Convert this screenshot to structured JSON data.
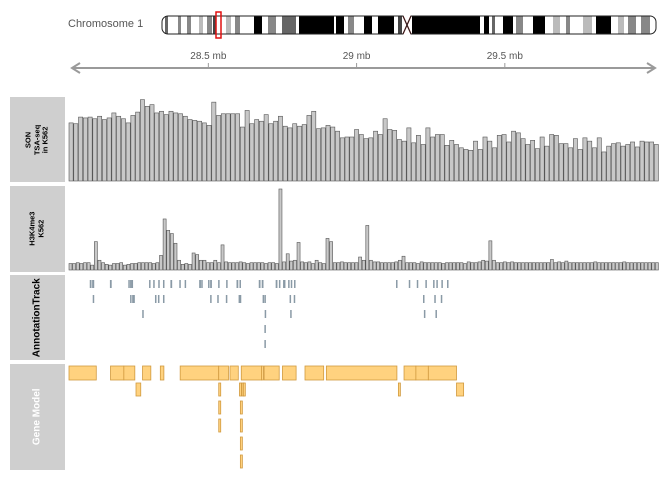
{
  "ideogram": {
    "chromosome": "Chromosome 1",
    "highlight": "red outline marks the displayed region",
    "centromere_color": "#cc0000"
  },
  "axis": {
    "ticks": [
      "28.5 mb",
      "29 mb",
      "29.5 mb"
    ],
    "tick_values_mb": [
      28.5,
      29.0,
      29.5
    ],
    "range_mb": [
      28.03,
      30.02
    ],
    "arrow": "double-headed"
  },
  "tracks": [
    {
      "name": "SON TSA-seq in K562",
      "lines": [
        "SON",
        "TSA-seq",
        "in K562"
      ],
      "label_color": "#000000"
    },
    {
      "name": "H3K4me3 K562",
      "lines": [
        "H3K4me3",
        "K562"
      ],
      "label_color": "#000000"
    },
    {
      "name": "AnnotationTrack",
      "lines": [
        "AnnotationTrack"
      ],
      "label_color": "#000000"
    },
    {
      "name": "Gene Model",
      "lines": [
        "Gene Model"
      ],
      "label_color": "#ffffff"
    }
  ],
  "colors": {
    "panel_bg": "#cfcfcf",
    "bar_fill": "#c8c8c8",
    "bar_stroke": "#555555",
    "annotation": "#8a9aa6",
    "gene_fill": "#ffd27f",
    "gene_stroke": "#d19a3f"
  },
  "chart_data": [
    {
      "type": "bar",
      "track": "SON TSA-seq in K562",
      "values": [
        0.7,
        0.69,
        0.77,
        0.76,
        0.77,
        0.75,
        0.78,
        0.74,
        0.76,
        0.82,
        0.78,
        0.75,
        0.7,
        0.79,
        0.83,
        0.98,
        0.9,
        0.92,
        0.82,
        0.84,
        0.8,
        0.84,
        0.82,
        0.81,
        0.78,
        0.74,
        0.73,
        0.72,
        0.7,
        0.67,
        0.95,
        0.79,
        0.81,
        0.81,
        0.81,
        0.81,
        0.65,
        0.85,
        0.69,
        0.74,
        0.72,
        0.8,
        0.69,
        0.72,
        0.78,
        0.66,
        0.64,
        0.69,
        0.66,
        0.68,
        0.79,
        0.84,
        0.63,
        0.64,
        0.67,
        0.65,
        0.6,
        0.52,
        0.53,
        0.53,
        0.62,
        0.56,
        0.51,
        0.52,
        0.6,
        0.56,
        0.75,
        0.62,
        0.61,
        0.5,
        0.48,
        0.64,
        0.46,
        0.55,
        0.44,
        0.64,
        0.53,
        0.56,
        0.56,
        0.43,
        0.49,
        0.44,
        0.4,
        0.38,
        0.37,
        0.48,
        0.38,
        0.53,
        0.48,
        0.4,
        0.55,
        0.56,
        0.47,
        0.6,
        0.58,
        0.51,
        0.44,
        0.49,
        0.39,
        0.53,
        0.42,
        0.56,
        0.55,
        0.45,
        0.45,
        0.4,
        0.51,
        0.38,
        0.52,
        0.48,
        0.4,
        0.52,
        0.35,
        0.42,
        0.45,
        0.46,
        0.42,
        0.44,
        0.47,
        0.41,
        0.48,
        0.47,
        0.47,
        0.44
      ],
      "ylim": [
        0,
        1
      ]
    },
    {
      "type": "bar",
      "track": "H3K4me3 K562",
      "values": [
        0.08,
        0.08,
        0.09,
        0.08,
        0.09,
        0.09,
        0.06,
        0.35,
        0.12,
        0.09,
        0.07,
        0.06,
        0.08,
        0.08,
        0.09,
        0.06,
        0.07,
        0.08,
        0.08,
        0.09,
        0.09,
        0.09,
        0.09,
        0.08,
        0.09,
        0.18,
        0.63,
        0.49,
        0.45,
        0.33,
        0.12,
        0.07,
        0.08,
        0.07,
        0.21,
        0.19,
        0.12,
        0.12,
        0.09,
        0.09,
        0.12,
        0.09,
        0.31,
        0.1,
        0.09,
        0.09,
        0.09,
        0.1,
        0.09,
        0.08,
        0.09,
        0.09,
        0.09,
        0.09,
        0.08,
        0.09,
        0.09,
        0.08,
        1.0,
        0.1,
        0.2,
        0.11,
        0.12,
        0.34,
        0.1,
        0.09,
        0.1,
        0.08,
        0.12,
        0.09,
        0.08,
        0.39,
        0.35,
        0.09,
        0.09,
        0.1,
        0.09,
        0.09,
        0.09,
        0.09,
        0.16,
        0.12,
        0.55,
        0.12,
        0.1,
        0.1,
        0.09,
        0.09,
        0.09,
        0.09,
        0.1,
        0.12,
        0.17,
        0.09,
        0.09,
        0.09,
        0.08,
        0.1,
        0.09,
        0.09,
        0.09,
        0.09,
        0.09,
        0.08,
        0.09,
        0.09,
        0.09,
        0.09,
        0.09,
        0.08,
        0.1,
        0.09,
        0.09,
        0.1,
        0.12,
        0.11,
        0.36,
        0.12,
        0.09,
        0.09,
        0.1,
        0.09,
        0.1,
        0.09,
        0.09,
        0.09,
        0.09,
        0.09,
        0.09,
        0.09,
        0.09,
        0.09,
        0.09,
        0.13,
        0.09,
        0.1,
        0.09,
        0.11,
        0.09,
        0.09,
        0.09,
        0.09,
        0.09,
        0.09,
        0.09,
        0.1,
        0.09,
        0.09,
        0.09,
        0.09,
        0.09,
        0.09,
        0.09,
        0.1,
        0.09,
        0.09,
        0.09,
        0.09,
        0.09,
        0.09,
        0.09,
        0.09,
        0.09
      ],
      "ylim": [
        0,
        1
      ]
    },
    {
      "type": "intervals",
      "track": "AnnotationTrack",
      "x_unit": "mb",
      "items": [
        {
          "start": 28.1,
          "end": 28.106,
          "row": 0
        },
        {
          "start": 28.108,
          "end": 28.11,
          "row": 0
        },
        {
          "start": 28.11,
          "end": 28.115,
          "row": 0
        },
        {
          "start": 28.168,
          "end": 28.174,
          "row": 0
        },
        {
          "start": 28.23,
          "end": 28.234,
          "row": 0
        },
        {
          "start": 28.236,
          "end": 28.24,
          "row": 0
        },
        {
          "start": 28.241,
          "end": 28.245,
          "row": 0
        },
        {
          "start": 28.3,
          "end": 28.305,
          "row": 0
        },
        {
          "start": 28.314,
          "end": 28.318,
          "row": 0
        },
        {
          "start": 28.331,
          "end": 28.335,
          "row": 0
        },
        {
          "start": 28.347,
          "end": 28.352,
          "row": 0
        },
        {
          "start": 28.372,
          "end": 28.378,
          "row": 0
        },
        {
          "start": 28.402,
          "end": 28.406,
          "row": 0
        },
        {
          "start": 28.42,
          "end": 28.424,
          "row": 0
        },
        {
          "start": 28.469,
          "end": 28.475,
          "row": 0
        },
        {
          "start": 28.476,
          "end": 28.48,
          "row": 0
        },
        {
          "start": 28.499,
          "end": 28.504,
          "row": 0
        },
        {
          "start": 28.506,
          "end": 28.512,
          "row": 0
        },
        {
          "start": 28.533,
          "end": 28.536,
          "row": 0
        },
        {
          "start": 28.56,
          "end": 28.564,
          "row": 0
        },
        {
          "start": 28.595,
          "end": 28.601,
          "row": 0
        },
        {
          "start": 28.605,
          "end": 28.61,
          "row": 0
        },
        {
          "start": 28.67,
          "end": 28.676,
          "row": 0
        },
        {
          "start": 28.68,
          "end": 28.686,
          "row": 0
        },
        {
          "start": 28.727,
          "end": 28.733,
          "row": 0
        },
        {
          "start": 28.738,
          "end": 28.742,
          "row": 0
        },
        {
          "start": 28.752,
          "end": 28.756,
          "row": 0
        },
        {
          "start": 28.755,
          "end": 28.76,
          "row": 0
        },
        {
          "start": 28.769,
          "end": 28.774,
          "row": 0
        },
        {
          "start": 28.778,
          "end": 28.783,
          "row": 0
        },
        {
          "start": 28.789,
          "end": 28.793,
          "row": 0
        },
        {
          "start": 29.133,
          "end": 29.137,
          "row": 0
        },
        {
          "start": 29.176,
          "end": 29.18,
          "row": 0
        },
        {
          "start": 29.203,
          "end": 29.207,
          "row": 0
        },
        {
          "start": 29.232,
          "end": 29.237,
          "row": 0
        },
        {
          "start": 29.258,
          "end": 29.262,
          "row": 0
        },
        {
          "start": 29.269,
          "end": 29.273,
          "row": 0
        },
        {
          "start": 29.286,
          "end": 29.29,
          "row": 0
        },
        {
          "start": 29.305,
          "end": 29.309,
          "row": 0
        },
        {
          "start": 28.11,
          "end": 28.114,
          "row": 1
        },
        {
          "start": 28.236,
          "end": 28.24,
          "row": 1
        },
        {
          "start": 28.243,
          "end": 28.247,
          "row": 1
        },
        {
          "start": 28.247,
          "end": 28.252,
          "row": 1
        },
        {
          "start": 28.32,
          "end": 28.324,
          "row": 1
        },
        {
          "start": 28.33,
          "end": 28.334,
          "row": 1
        },
        {
          "start": 28.347,
          "end": 28.351,
          "row": 1
        },
        {
          "start": 28.506,
          "end": 28.511,
          "row": 1
        },
        {
          "start": 28.53,
          "end": 28.534,
          "row": 1
        },
        {
          "start": 28.559,
          "end": 28.563,
          "row": 1
        },
        {
          "start": 28.602,
          "end": 28.606,
          "row": 1
        },
        {
          "start": 28.606,
          "end": 28.61,
          "row": 1
        },
        {
          "start": 28.683,
          "end": 28.687,
          "row": 1
        },
        {
          "start": 28.689,
          "end": 28.694,
          "row": 1
        },
        {
          "start": 28.774,
          "end": 28.778,
          "row": 1
        },
        {
          "start": 28.788,
          "end": 28.792,
          "row": 1
        },
        {
          "start": 29.224,
          "end": 29.228,
          "row": 1
        },
        {
          "start": 29.262,
          "end": 29.266,
          "row": 1
        },
        {
          "start": 29.284,
          "end": 29.288,
          "row": 1
        },
        {
          "start": 28.277,
          "end": 28.281,
          "row": 2
        },
        {
          "start": 28.69,
          "end": 28.694,
          "row": 2
        },
        {
          "start": 28.776,
          "end": 28.78,
          "row": 2
        },
        {
          "start": 29.227,
          "end": 29.231,
          "row": 2
        },
        {
          "start": 29.266,
          "end": 29.27,
          "row": 2
        },
        {
          "start": 28.689,
          "end": 28.693,
          "row": 3
        },
        {
          "start": 28.689,
          "end": 28.693,
          "row": 4
        }
      ]
    },
    {
      "type": "intervals",
      "track": "Gene Model",
      "x_unit": "mb",
      "items": [
        {
          "start": 28.03,
          "end": 28.122,
          "row": 0
        },
        {
          "start": 28.17,
          "end": 28.215,
          "row": 0
        },
        {
          "start": 28.215,
          "end": 28.252,
          "row": 0
        },
        {
          "start": 28.278,
          "end": 28.306,
          "row": 0
        },
        {
          "start": 28.338,
          "end": 28.35,
          "row": 0
        },
        {
          "start": 28.405,
          "end": 28.535,
          "row": 0
        },
        {
          "start": 28.535,
          "end": 28.568,
          "row": 0
        },
        {
          "start": 28.573,
          "end": 28.601,
          "row": 0
        },
        {
          "start": 28.611,
          "end": 28.679,
          "row": 0
        },
        {
          "start": 28.679,
          "end": 28.684,
          "row": 0
        },
        {
          "start": 28.688,
          "end": 28.739,
          "row": 0
        },
        {
          "start": 28.75,
          "end": 28.796,
          "row": 0
        },
        {
          "start": 28.826,
          "end": 28.889,
          "row": 0
        },
        {
          "start": 28.898,
          "end": 29.136,
          "row": 0
        },
        {
          "start": 29.16,
          "end": 29.2,
          "row": 0
        },
        {
          "start": 29.2,
          "end": 29.242,
          "row": 0
        },
        {
          "start": 29.242,
          "end": 29.337,
          "row": 0
        },
        {
          "start": 28.256,
          "end": 28.272,
          "row": 1
        },
        {
          "start": 28.535,
          "end": 28.54,
          "row": 1
        },
        {
          "start": 28.605,
          "end": 28.61,
          "row": 1
        },
        {
          "start": 28.613,
          "end": 28.618,
          "row": 1
        },
        {
          "start": 28.618,
          "end": 28.623,
          "row": 1
        },
        {
          "start": 29.141,
          "end": 29.147,
          "row": 1
        },
        {
          "start": 29.337,
          "end": 29.361,
          "row": 1
        },
        {
          "start": 28.535,
          "end": 28.54,
          "row": 2
        },
        {
          "start": 28.608,
          "end": 28.612,
          "row": 2
        },
        {
          "start": 28.535,
          "end": 28.54,
          "row": 3
        },
        {
          "start": 28.608,
          "end": 28.612,
          "row": 3
        },
        {
          "start": 28.608,
          "end": 28.612,
          "row": 4
        },
        {
          "start": 28.608,
          "end": 28.612,
          "row": 5
        }
      ]
    }
  ]
}
